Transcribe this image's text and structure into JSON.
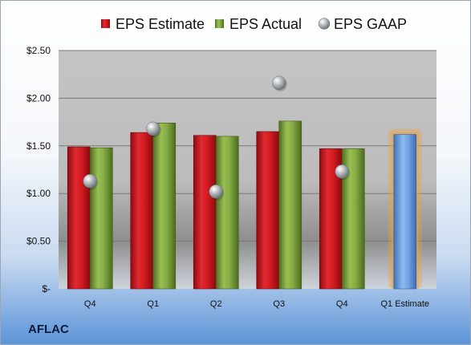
{
  "company": "AFLAC",
  "colors": {
    "estimate": "#c8141c",
    "actual": "#78a03a",
    "gaap": "#9aa0a6",
    "projection": "#6aa0e0",
    "projection_glow": "#f0a040"
  },
  "chart_data": {
    "type": "bar",
    "categories": [
      "Q4",
      "Q1",
      "Q2",
      "Q3",
      "Q4",
      "Q1 Estimate"
    ],
    "series": [
      {
        "name": "EPS Estimate",
        "kind": "bar",
        "values": [
          1.49,
          1.64,
          1.61,
          1.65,
          1.47,
          null
        ]
      },
      {
        "name": "EPS Actual",
        "kind": "bar",
        "values": [
          1.48,
          1.74,
          1.6,
          1.76,
          1.47,
          null
        ]
      },
      {
        "name": "EPS GAAP",
        "kind": "marker",
        "values": [
          1.13,
          1.68,
          1.02,
          2.16,
          1.23,
          null
        ]
      },
      {
        "name": "",
        "kind": "bar",
        "values": [
          null,
          null,
          null,
          null,
          null,
          1.62
        ]
      }
    ],
    "y_ticks": [
      {
        "value": 0,
        "label": "$-"
      },
      {
        "value": 0.5,
        "label": "$0.50"
      },
      {
        "value": 1.0,
        "label": "$1.00"
      },
      {
        "value": 1.5,
        "label": "$1.50"
      },
      {
        "value": 2.0,
        "label": "$2.00"
      },
      {
        "value": 2.5,
        "label": "$2.50"
      }
    ],
    "ylim": [
      0,
      2.5
    ],
    "grid": true,
    "legend": "top"
  }
}
